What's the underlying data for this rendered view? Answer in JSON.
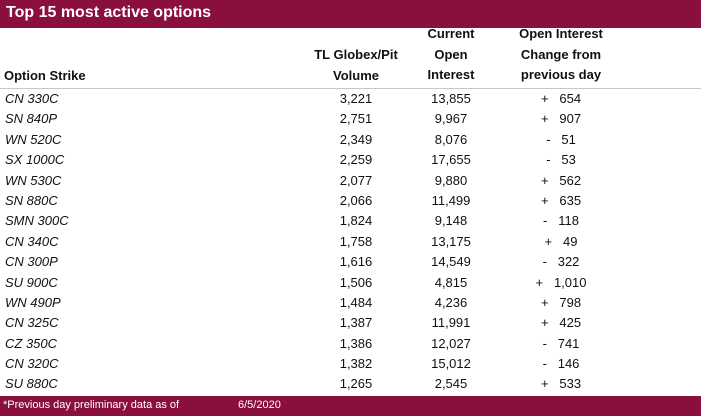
{
  "title": "Top 15 most active options",
  "columns": {
    "strike": "Option Strike",
    "volume": [
      "TL Globex/Pit",
      "Volume"
    ],
    "current_oi": [
      "Current",
      "Open",
      "Interest"
    ],
    "oi_change": [
      "Open Interest",
      "Change from",
      "previous day"
    ]
  },
  "rows": [
    {
      "strike": "CN 330C",
      "volume": "3,221",
      "open_interest": "13,855",
      "change": "+   654"
    },
    {
      "strike": "SN 840P",
      "volume": "2,751",
      "open_interest": "9,967",
      "change": "+   907"
    },
    {
      "strike": "WN 520C",
      "volume": "2,349",
      "open_interest": "8,076",
      "change": "-   51"
    },
    {
      "strike": "SX 1000C",
      "volume": "2,259",
      "open_interest": "17,655",
      "change": "-   53"
    },
    {
      "strike": "WN 530C",
      "volume": "2,077",
      "open_interest": "9,880",
      "change": "+   562"
    },
    {
      "strike": "SN 880C",
      "volume": "2,066",
      "open_interest": "11,499",
      "change": "+   635"
    },
    {
      "strike": "SMN 300C",
      "volume": "1,824",
      "open_interest": "9,148",
      "change": "-   118"
    },
    {
      "strike": "CN 340C",
      "volume": "1,758",
      "open_interest": "13,175",
      "change": "+   49"
    },
    {
      "strike": "CN 300P",
      "volume": "1,616",
      "open_interest": "14,549",
      "change": "-   322"
    },
    {
      "strike": "SU 900C",
      "volume": "1,506",
      "open_interest": "4,815",
      "change": "+   1,010"
    },
    {
      "strike": "WN 490P",
      "volume": "1,484",
      "open_interest": "4,236",
      "change": "+   798"
    },
    {
      "strike": "CN 325C",
      "volume": "1,387",
      "open_interest": "11,991",
      "change": "+   425"
    },
    {
      "strike": "CZ 350C",
      "volume": "1,386",
      "open_interest": "12,027",
      "change": "-   741"
    },
    {
      "strike": "CN 320C",
      "volume": "1,382",
      "open_interest": "15,012",
      "change": "-   146"
    },
    {
      "strike": "SU 880C",
      "volume": "1,265",
      "open_interest": "2,545",
      "change": "+   533"
    }
  ],
  "footer": {
    "note": "*Previous day preliminary data as of",
    "date": "6/5/2020"
  },
  "colors": {
    "accent": "#8a0f3c",
    "text": "#111111",
    "rule": "#c7c7c7"
  }
}
